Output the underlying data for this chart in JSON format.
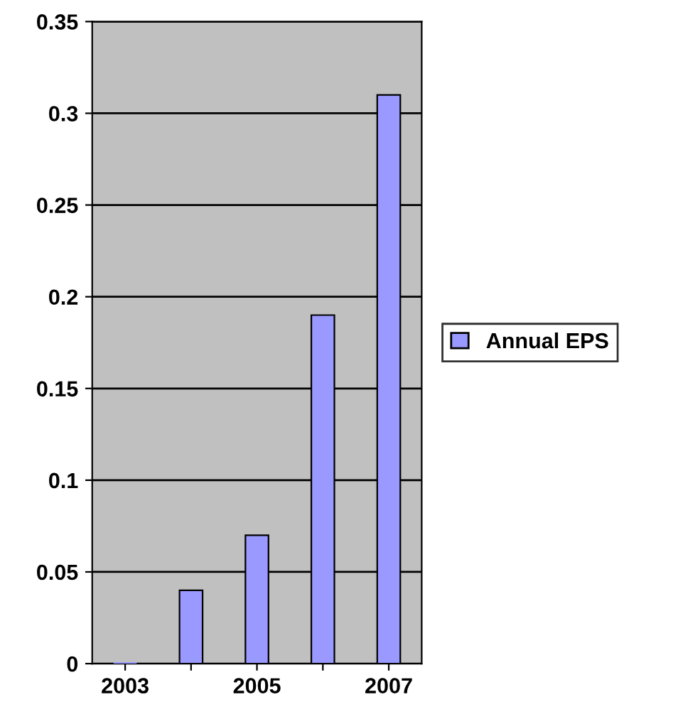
{
  "chart_data": {
    "type": "bar",
    "categories": [
      "2003",
      null,
      "2005",
      null,
      "2007"
    ],
    "series": [
      {
        "name": "Annual EPS",
        "color": "#9999ff",
        "values": [
          0,
          0.04,
          0.07,
          0.19,
          0.31
        ]
      }
    ],
    "ylim": [
      0,
      0.35
    ],
    "yticks": [
      0,
      0.05,
      0.1,
      0.15,
      0.2,
      0.25,
      0.3,
      0.35
    ],
    "grid": "y",
    "legend": "right"
  }
}
